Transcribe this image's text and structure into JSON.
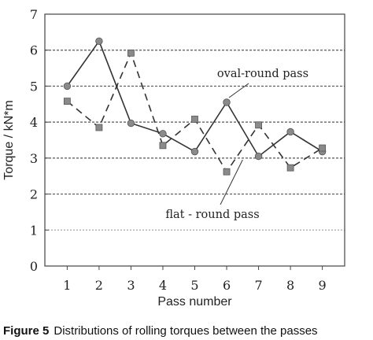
{
  "chart_data": {
    "type": "line",
    "title": "",
    "xlabel": "Pass number",
    "ylabel": "Torque / kN*m",
    "x": [
      1,
      2,
      3,
      4,
      5,
      6,
      7,
      8,
      9
    ],
    "xlim": [
      0.3,
      9.7
    ],
    "ylim": [
      0,
      7
    ],
    "yticks": [
      0,
      1,
      2,
      3,
      4,
      5,
      6,
      7
    ],
    "grid": "horizontal dashed",
    "series": [
      {
        "name": "oval-round pass",
        "values": [
          5.0,
          6.25,
          3.97,
          3.68,
          3.18,
          4.55,
          3.05,
          3.73,
          3.18
        ],
        "line": "solid",
        "marker": "circle",
        "color": "#333333",
        "marker_color": "#8a8a8a"
      },
      {
        "name": "flat - round pass",
        "values": [
          4.58,
          3.85,
          5.92,
          3.35,
          4.08,
          2.62,
          3.92,
          2.73,
          3.28
        ],
        "line": "dashed",
        "marker": "square",
        "color": "#333333",
        "marker_color": "#8a8a8a"
      }
    ],
    "annotations": [
      {
        "text": "oval-round pass",
        "points_to": {
          "x": 6,
          "y": 4.55
        }
      },
      {
        "text": "flat - round pass",
        "points_to": {
          "x": 6.5,
          "y": 2.95
        }
      }
    ]
  },
  "caption": {
    "label": "Figure 5",
    "text": "Distributions of rolling torques between the passes"
  }
}
